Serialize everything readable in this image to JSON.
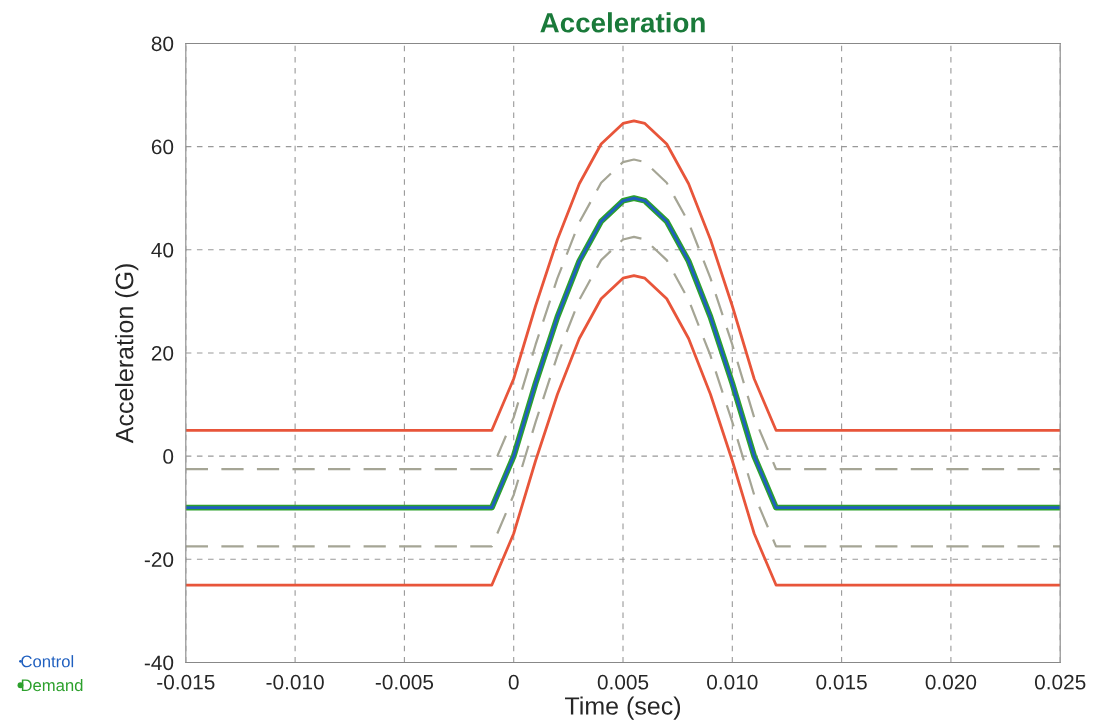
{
  "chart_data": {
    "type": "line",
    "title": "Acceleration",
    "xlabel": "Time (sec)",
    "ylabel": "Acceleration (G)",
    "x": [
      -0.015,
      -0.001,
      0,
      0.001,
      0.002,
      0.003,
      0.004,
      0.005,
      0.0055,
      0.006,
      0.007,
      0.008,
      0.009,
      0.01,
      0.011,
      0.012,
      0.025
    ],
    "series": [
      {
        "color": "#e8553a",
        "line_style": "solid",
        "values": [
          5,
          5,
          15,
          29.1,
          42,
          52.8,
          60.5,
          64.5,
          65,
          64.5,
          60.5,
          52.8,
          42,
          29.1,
          15,
          5,
          5
        ]
      },
      {
        "color": "#e8553a",
        "line_style": "solid",
        "values": [
          -25,
          -25,
          -15,
          -0.9,
          12,
          22.8,
          30.5,
          34.5,
          35,
          34.5,
          30.5,
          22.8,
          12,
          -0.9,
          -15,
          -25,
          -25
        ]
      },
      {
        "color": "#a5a595",
        "line_style": "dashed",
        "values": [
          -2.5,
          -2.5,
          7.5,
          21.6,
          34.5,
          45.3,
          53,
          57,
          57.5,
          57,
          53,
          45.3,
          34.5,
          21.6,
          7.5,
          -2.5,
          -2.5
        ]
      },
      {
        "color": "#a5a595",
        "line_style": "dashed",
        "values": [
          -17.5,
          -17.5,
          -7.5,
          6.6,
          19.5,
          30.3,
          38,
          42,
          42.5,
          42,
          38,
          30.3,
          19.5,
          6.6,
          -7.5,
          -17.5,
          -17.5
        ]
      },
      {
        "name": "Demand",
        "color": "#2ca02c",
        "line_style": "solid",
        "values": [
          -10,
          -10,
          0,
          14.1,
          27,
          37.8,
          45.5,
          49.5,
          50,
          49.5,
          45.5,
          37.8,
          27,
          14.1,
          0,
          -10,
          -10
        ]
      },
      {
        "name": "Control",
        "color": "#1f5fbf",
        "line_style": "solid",
        "values": [
          -10,
          -10,
          0,
          14.1,
          27,
          37.8,
          45.5,
          49.5,
          50,
          49.5,
          45.5,
          37.8,
          27,
          14.1,
          0,
          -10,
          -10
        ]
      }
    ],
    "xlim": [
      -0.015,
      0.025
    ],
    "ylim": [
      -40,
      80
    ],
    "xticks": [
      -0.015,
      {
        "value": -0.01,
        "label": "-0.010"
      },
      -0.005,
      0,
      0.005,
      {
        "value": 0.01,
        "label": "0.010"
      },
      0.015,
      {
        "value": 0.02,
        "label": "0.020"
      },
      0.025
    ],
    "yticks": [
      -40,
      -20,
      0,
      20,
      40,
      60,
      80
    ],
    "grid": true,
    "legend": "bottom left"
  }
}
